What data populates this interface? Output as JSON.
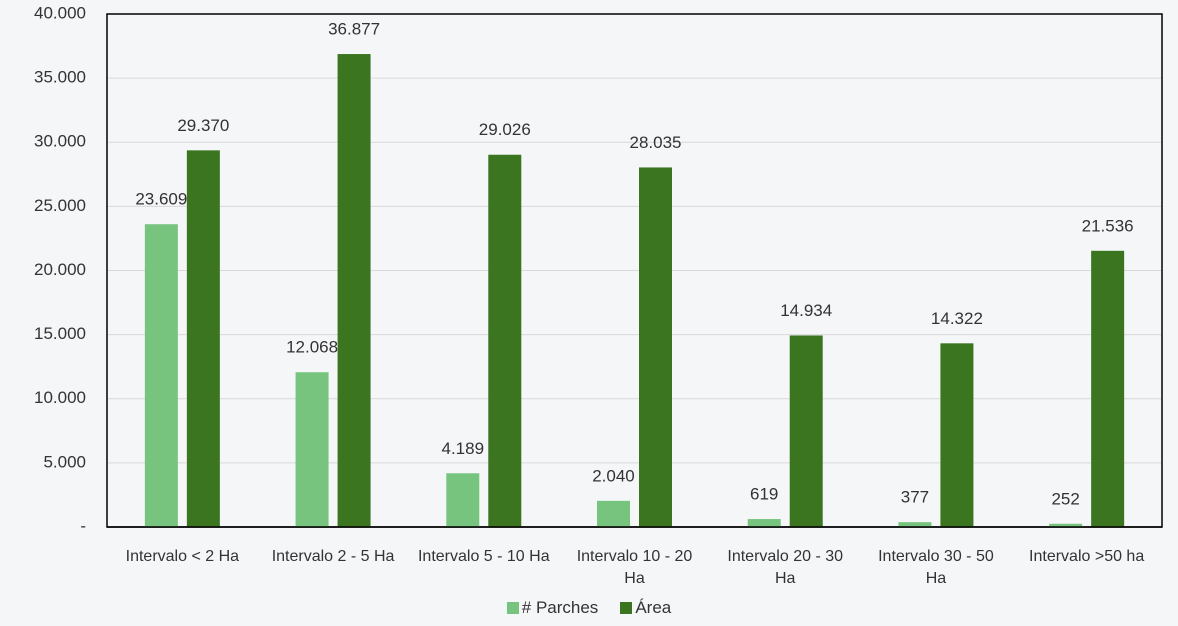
{
  "chart_data": {
    "type": "bar",
    "categories": [
      "Intervalo < 2 Ha",
      "Intervalo 2 - 5 Ha",
      "Intervalo 5 - 10 Ha",
      "Intervalo 10 - 20 Ha",
      "Intervalo 20 - 30 Ha",
      "Intervalo 30 - 50 Ha",
      "Intervalo >50 ha"
    ],
    "series": [
      {
        "name": "# Parches",
        "color": "#77c47f",
        "values": [
          23609,
          12068,
          4189,
          2040,
          619,
          377,
          252
        ],
        "value_labels": [
          "23.609",
          "12.068",
          "4.189",
          "2.040",
          "619",
          "377",
          "252"
        ]
      },
      {
        "name": "Área",
        "color": "#3b7520",
        "values": [
          29370,
          36877,
          29026,
          28035,
          14934,
          14322,
          21536
        ],
        "value_labels": [
          "29.370",
          "36.877",
          "29.026",
          "28.035",
          "14.934",
          "14.322",
          "21.536"
        ]
      }
    ],
    "ylim": [
      0,
      40000
    ],
    "yticks": [
      {
        "value": 0,
        "label": "-"
      },
      {
        "value": 5000,
        "label": "5.000"
      },
      {
        "value": 10000,
        "label": "10.000"
      },
      {
        "value": 15000,
        "label": "15.000"
      },
      {
        "value": 20000,
        "label": "20.000"
      },
      {
        "value": 25000,
        "label": "25.000"
      },
      {
        "value": 30000,
        "label": "30.000"
      },
      {
        "value": 35000,
        "label": "35.000"
      },
      {
        "value": 40000,
        "label": "40.000"
      }
    ],
    "grid": true,
    "legend": "bottom"
  }
}
